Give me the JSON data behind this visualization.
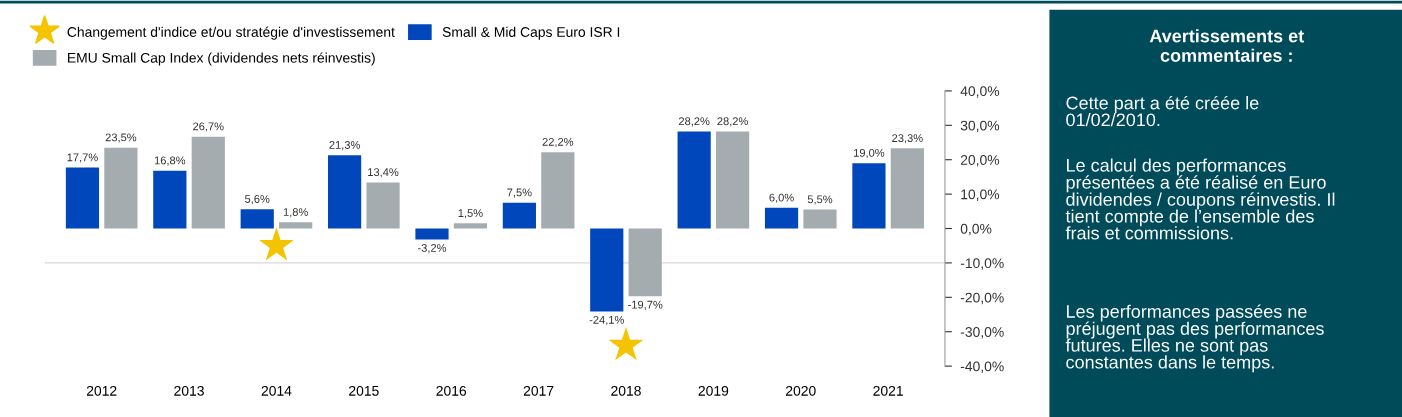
{
  "chart_data": {
    "type": "bar",
    "categories": [
      "2012",
      "2013",
      "2014",
      "2015",
      "2016",
      "2017",
      "2018",
      "2019",
      "2020",
      "2021"
    ],
    "series": [
      {
        "name": "Changement d'indice et/ou stratégie d'investissement",
        "type": "scatter",
        "marker": "star",
        "color": "#f5c400",
        "values": [
          null,
          null,
          -5,
          null,
          null,
          null,
          -34,
          null,
          null,
          null
        ]
      },
      {
        "name": "Small & Mid Caps Euro ISR I",
        "color": "#0047bb",
        "values": [
          17.7,
          16.8,
          5.6,
          21.3,
          -3.2,
          7.5,
          -24.1,
          28.2,
          6.0,
          19.0
        ],
        "value_labels": [
          "17,7%",
          "16,8%",
          "5,6%",
          "21,3%",
          "-3,2%",
          "7,5%",
          "-24,1%",
          "28,2%",
          "6,0%",
          "19,0%"
        ]
      },
      {
        "name": "EMU Small Cap Index (dividendes nets réinvestis)",
        "color": "#a5acb0",
        "values": [
          23.5,
          26.7,
          1.8,
          13.4,
          1.5,
          22.2,
          -19.7,
          28.2,
          5.5,
          23.3
        ],
        "value_labels": [
          "23,5%",
          "26,7%",
          "1,8%",
          "13,4%",
          "1,5%",
          "22,2%",
          "-19,7%",
          "28,2%",
          "5,5%",
          "23,3%"
        ]
      }
    ],
    "ylim": [
      -40,
      40
    ],
    "yticks": [
      {
        "value": -40,
        "label": "-40,0%"
      },
      {
        "value": -30,
        "label": "-30,0%"
      },
      {
        "value": -20,
        "label": "-20,0%"
      },
      {
        "value": -10,
        "label": "-10,0%"
      },
      {
        "value": 0,
        "label": "0,0%"
      },
      {
        "value": 10,
        "label": "10,0%"
      },
      {
        "value": 20,
        "label": "20,0%"
      },
      {
        "value": 30,
        "label": "30,0%"
      },
      {
        "value": 40,
        "label": "40,0%"
      }
    ],
    "ref_lines": [
      {
        "axis": "y",
        "value": -10,
        "color": "#d9d9d9"
      }
    ],
    "grid": false,
    "legend": "top left",
    "annotations": [
      "Avertissements et\ncommentaires :",
      "Cette part a été créée le\n01/02/2010.",
      "Le calcul des performances\nprésentées a été réalisé en Euro\ndividendes / coupons réinvestis. Il\ntient compte de l’ensemble des\nfrais et commissions.",
      "Les performances passées ne\npréjugent pas des performances\nfutures. Elles ne sont pas\nconstantes dans le temps."
    ]
  }
}
